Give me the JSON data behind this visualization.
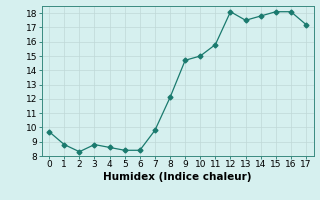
{
  "x": [
    0,
    1,
    2,
    3,
    4,
    5,
    6,
    7,
    8,
    9,
    10,
    11,
    12,
    13,
    14,
    15,
    16,
    17
  ],
  "y": [
    9.7,
    8.8,
    8.3,
    8.8,
    8.6,
    8.4,
    8.4,
    9.8,
    12.1,
    14.7,
    15.0,
    15.8,
    18.1,
    17.5,
    17.8,
    18.1,
    18.1,
    17.2
  ],
  "line_color": "#1a7a6e",
  "marker": "D",
  "marker_size": 2.5,
  "bg_color": "#d6f0ef",
  "grid_color": "#c0d8d8",
  "xlabel": "Humidex (Indice chaleur)",
  "xlim": [
    -0.5,
    17.5
  ],
  "ylim": [
    8,
    18.5
  ],
  "yticks": [
    8,
    9,
    10,
    11,
    12,
    13,
    14,
    15,
    16,
    17,
    18
  ],
  "xticks": [
    0,
    1,
    2,
    3,
    4,
    5,
    6,
    7,
    8,
    9,
    10,
    11,
    12,
    13,
    14,
    15,
    16,
    17
  ],
  "tick_fontsize": 6.5,
  "xlabel_fontsize": 7.5
}
